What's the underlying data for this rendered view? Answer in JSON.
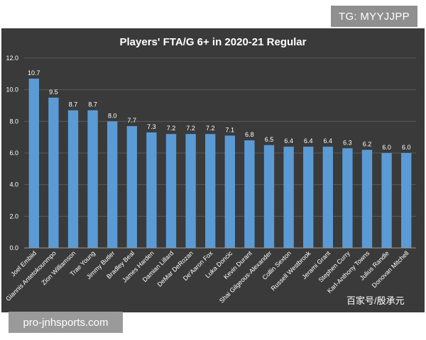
{
  "header_tag": "TG: MYYJJPP",
  "footer_source": "pro-jnhsports.com",
  "watermark": "百家号/殷承元",
  "colors": {
    "panel": "#3a3a3a",
    "bar": "#5b9bd5",
    "grid": "#5a5a5a",
    "text": "#ffffff"
  },
  "chart_data": {
    "type": "bar",
    "title": "Players' FTA/G 6+ in 2020-21 Regular",
    "xlabel": "",
    "ylabel": "",
    "ylim": [
      0,
      12
    ],
    "yticks": [
      "0.0",
      "2.0",
      "4.0",
      "6.0",
      "8.0",
      "10.0",
      "12.0"
    ],
    "grid": true,
    "categories": [
      "Joel Embiid",
      "Giannis Antetokounmpo",
      "Zion Williamson",
      "Trae Young",
      "Jimmy Butler",
      "Bradley Beal",
      "James Harden",
      "Damian Lillard",
      "DeMar DeRozan",
      "De'Aaron Fox",
      "Luka Doncic",
      "Kevin Durant",
      "Shai Gilgeous-Alexander",
      "Collin Sexton",
      "Russell Westbrook",
      "Jerami Grant",
      "Stephen Curry",
      "Karl-Anthony Towns",
      "Julius Randle",
      "Donovan Mitchell"
    ],
    "values": [
      10.7,
      9.5,
      8.7,
      8.7,
      8.0,
      7.7,
      7.3,
      7.2,
      7.2,
      7.2,
      7.1,
      6.8,
      6.5,
      6.4,
      6.4,
      6.4,
      6.3,
      6.2,
      6.0,
      6.0
    ],
    "value_labels": [
      "10.7",
      "9.5",
      "8.7",
      "8.7",
      "8.0",
      "7.7",
      "7.3",
      "7.2",
      "7.2",
      "7.2",
      "7.1",
      "6.8",
      "6.5",
      "6.4",
      "6.4",
      "6.4",
      "6.3",
      "6.2",
      "6.0",
      "6.0"
    ]
  }
}
